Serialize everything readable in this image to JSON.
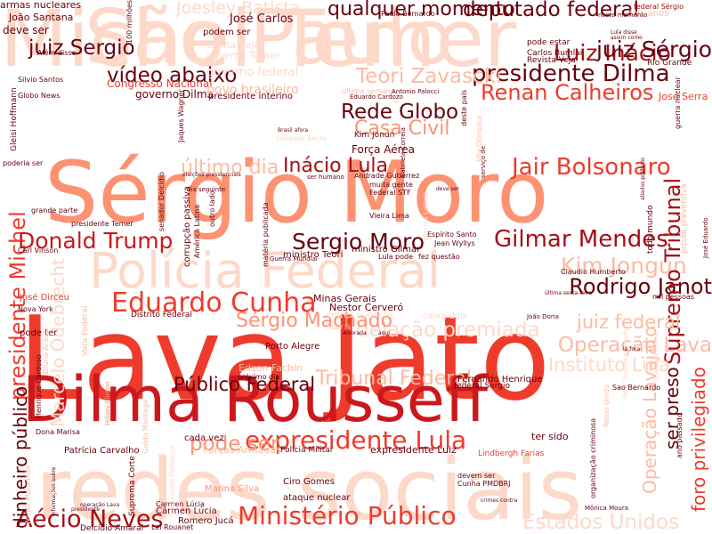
{
  "palette": {
    "very_light": "#fdd9ca",
    "light": "#fcbba1",
    "mid_light": "#fc9272",
    "mid": "#ef3b2c",
    "strong": "#cb181d",
    "dark": "#a50f15",
    "darkest": "#67000d"
  },
  "words": [
    {
      "text": "Michel Temer",
      "tone": "very_light"
    },
    {
      "text": "São Paulo",
      "tone": "very_light"
    },
    {
      "text": "Sérgio Moro",
      "tone": "mid_light"
    },
    {
      "text": "Lava Jato",
      "tone": "mid"
    },
    {
      "text": "Dilma Rousseff",
      "tone": "strong"
    },
    {
      "text": "redes sociais",
      "tone": "very_light"
    },
    {
      "text": "Polícia Federal",
      "tone": "very_light"
    },
    {
      "text": "expresidente Lula",
      "tone": "mid"
    },
    {
      "text": "Eduardo Cunha",
      "tone": "mid"
    },
    {
      "text": "Ministério Público",
      "tone": "mid"
    },
    {
      "text": "Aécio Neves",
      "tone": "dark"
    },
    {
      "text": "presidente Michel",
      "tone": "mid"
    },
    {
      "text": "Gilmar Mendes",
      "tone": "dark"
    },
    {
      "text": "Jair Bolsonaro",
      "tone": "mid"
    },
    {
      "text": "Luiz Inácio",
      "tone": "dark"
    },
    {
      "text": "juiz Sérgio",
      "tone": "darkest"
    },
    {
      "text": "presidente Dilma",
      "tone": "darkest"
    },
    {
      "text": "Renan Calheiros",
      "tone": "mid"
    },
    {
      "text": "Teori Zavascki",
      "tone": "light"
    },
    {
      "text": "deputado federal",
      "tone": "darkest"
    },
    {
      "text": "qualquer momento",
      "tone": "darkest"
    },
    {
      "text": "Inácio Lula",
      "tone": "dark"
    },
    {
      "text": "Donald Trump",
      "tone": "strong"
    },
    {
      "text": "Sergio Moro",
      "tone": "darkest"
    },
    {
      "text": "Kim Jongun",
      "tone": "light"
    },
    {
      "text": "Rodrigo Janot",
      "tone": "darkest"
    },
    {
      "text": "delação premiada",
      "tone": "very_light"
    },
    {
      "text": "Operação Lava",
      "tone": "light"
    },
    {
      "text": "Supremo Tribunal",
      "tone": "dark"
    },
    {
      "text": "Tribunal Federal",
      "tone": "light"
    },
    {
      "text": "pode ser",
      "tone": "mid_light"
    },
    {
      "text": "Estados Unidos",
      "tone": "very_light"
    },
    {
      "text": "Rede Globo",
      "tone": "darkest"
    },
    {
      "text": "Casa Civil",
      "tone": "mid_light"
    },
    {
      "text": "vídeo abaixo",
      "tone": "darkest"
    },
    {
      "text": "juiz Sergio",
      "tone": "darkest"
    },
    {
      "text": "último dia",
      "tone": "light"
    },
    {
      "text": "Sérgio Machado",
      "tone": "mid_light"
    },
    {
      "text": "Instituto Lula",
      "tone": "very_light"
    },
    {
      "text": "juiz federal",
      "tone": "light"
    },
    {
      "text": "Público Federal",
      "tone": "darkest"
    },
    {
      "text": "foro privilegiado",
      "tone": "mid"
    },
    {
      "text": "Operação Lavajato",
      "tone": "light"
    },
    {
      "text": "ser preso",
      "tone": "darkest"
    },
    {
      "text": "dinheiro público",
      "tone": "darkest"
    },
    {
      "text": "Marcelo Odebrecht",
      "tone": "very_light"
    },
    {
      "text": "Joesley Batista",
      "tone": "very_light"
    },
    {
      "text": "José Carlos",
      "tone": "darkest"
    },
    {
      "text": "armas nucleares",
      "tone": "darkest"
    },
    {
      "text": "João Santana",
      "tone": "darkest"
    },
    {
      "text": "deve ser",
      "tone": "darkest"
    },
    {
      "text": "Paulo Bernardo",
      "tone": "darkest"
    },
    {
      "text": "federal Sérgio",
      "tone": "dark"
    },
    {
      "text": "dois anos",
      "tone": "light"
    },
    {
      "text": "podem ser",
      "tone": "darkest"
    },
    {
      "text": "governo Dilma",
      "tone": "darkest"
    },
    {
      "text": "Congresso Nacional",
      "tone": "mid"
    },
    {
      "text": "povo brasileiro",
      "tone": "light"
    },
    {
      "text": "presidente interino",
      "tone": "darkest"
    },
    {
      "text": "governo federal",
      "tone": "very_light"
    },
    {
      "text": "governo Temer",
      "tone": "very_light"
    },
    {
      "text": "revista Veja",
      "tone": "very_light"
    },
    {
      "text": "Força Aérea",
      "tone": "darkest"
    },
    {
      "text": "Kim Jonun",
      "tone": "darkest"
    },
    {
      "text": "Carlos Bumlai",
      "tone": "darkest"
    },
    {
      "text": "Revista Veja",
      "tone": "darkest"
    },
    {
      "text": "pode estar",
      "tone": "darkest"
    },
    {
      "text": "Rio Grande",
      "tone": "darkest"
    },
    {
      "text": "José Serra",
      "tone": "mid"
    },
    {
      "text": "guerra nuclear",
      "tone": "darkest"
    },
    {
      "text": "Minas Gerais",
      "tone": "darkest"
    },
    {
      "text": "Nestor Cerveró",
      "tone": "darkest"
    },
    {
      "text": "cofres públicos",
      "tone": "very_light"
    },
    {
      "text": "caixa dois",
      "tone": "very_light"
    },
    {
      "text": "Distrito Federal",
      "tone": "darkest"
    },
    {
      "text": "Porto Alegre",
      "tone": "darkest"
    },
    {
      "text": "Edson Fachin",
      "tone": "light"
    },
    {
      "text": "Fernando Henrique",
      "tone": "darkest"
    },
    {
      "text": "federal Sergio",
      "tone": "darkest"
    },
    {
      "text": "cada vez",
      "tone": "darkest"
    },
    {
      "text": "Polícia Militar",
      "tone": "darkest"
    },
    {
      "text": "expresidente Luiz",
      "tone": "darkest"
    },
    {
      "text": "Lindbergh Farias",
      "tone": "mid"
    },
    {
      "text": "Patrícia Carvalho",
      "tone": "darkest"
    },
    {
      "text": "Forças Armadas",
      "tone": "light"
    },
    {
      "text": "Marina Silva",
      "tone": "mid_light"
    },
    {
      "text": "Ciro Gomes",
      "tone": "darkest"
    },
    {
      "text": "ataque nuclear",
      "tone": "darkest"
    },
    {
      "text": "Cunha PMDBRJ",
      "tone": "darkest"
    },
    {
      "text": "devem ser",
      "tone": "darkest"
    },
    {
      "text": "Carmen Lúcia",
      "tone": "darkest"
    },
    {
      "text": "Cármen Lúcia",
      "tone": "darkest"
    },
    {
      "text": "Romero Jucá",
      "tone": "darkest"
    },
    {
      "text": "Delcídio Amaral",
      "tone": "darkest"
    },
    {
      "text": "Lei Rouanet",
      "tone": "darkest"
    },
    {
      "text": "Mônica Moura",
      "tone": "darkest"
    },
    {
      "text": "ter sido",
      "tone": "darkest"
    },
    {
      "text": "organização criminosa",
      "tone": "darkest"
    },
    {
      "text": "ministro Teori",
      "tone": "darkest"
    },
    {
      "text": "ministro Gilmar",
      "tone": "darkest"
    },
    {
      "text": "Lula pode",
      "tone": "darkest"
    },
    {
      "text": "fez questão",
      "tone": "darkest"
    },
    {
      "text": "Jean Wyllys",
      "tone": "darkest"
    },
    {
      "text": "Espírito Santo",
      "tone": "darkest"
    },
    {
      "text": "Carl Vinson",
      "tone": "darkest"
    },
    {
      "text": "José Dirceu",
      "tone": "mid"
    },
    {
      "text": "Nova York",
      "tone": "darkest"
    },
    {
      "text": "grande parte",
      "tone": "darkest"
    },
    {
      "text": "poderia ser",
      "tone": "darkest"
    },
    {
      "text": "Globo News",
      "tone": "darkest"
    },
    {
      "text": "Silvio Santos",
      "tone": "darkest"
    },
    {
      "text": "Gleisi Hoffmann",
      "tone": "darkest"
    },
    {
      "text": "Além disso",
      "tone": "darkest"
    },
    {
      "text": "Vieira Lima",
      "tone": "darkest"
    },
    {
      "text": "Federal STF",
      "tone": "darkest"
    },
    {
      "text": "Andrade Gutierrez",
      "tone": "darkest"
    },
    {
      "text": "muita gente",
      "tone": "darkest"
    },
    {
      "text": "Jaques Wagner",
      "tone": "darkest"
    },
    {
      "text": "Eduardo Cardozo",
      "tone": "darkest"
    },
    {
      "text": "última semana",
      "tone": "light"
    },
    {
      "text": "Vila Olímpica",
      "tone": "light"
    },
    {
      "text": "senador Aécio",
      "tone": "very_light"
    },
    {
      "text": "todo mundo",
      "tone": "darkest"
    },
    {
      "text": "prisão preventiva",
      "tone": "light"
    },
    {
      "text": "Claudio Humberto",
      "tone": "darkest"
    },
    {
      "text": "mil pessoas",
      "tone": "darkest"
    },
    {
      "text": "Guido Mantega",
      "tone": "light"
    },
    {
      "text": "Sepúlveda Pertence",
      "tone": "very_light"
    },
    {
      "text": "próximo dia",
      "tone": "darkest"
    },
    {
      "text": "Rede Sustentabilidade",
      "tone": "very_light"
    },
    {
      "text": "Operação Carne",
      "tone": "very_light"
    },
    {
      "text": "Sao Bernardo",
      "tone": "darkest"
    },
    {
      "text": "ano passado",
      "tone": "darkest"
    },
    {
      "text": "Reino Unido",
      "tone": "light"
    },
    {
      "text": "Henrique Cardoso",
      "tone": "darkest"
    },
    {
      "text": "Hillary Clinton",
      "tone": "mid_light"
    },
    {
      "text": "Suprema Corte",
      "tone": "darkest"
    },
    {
      "text": "Dona Marisa",
      "tone": "darkest"
    },
    {
      "text": "corrupção passiva",
      "tone": "darkest"
    },
    {
      "text": "senador Delcídio",
      "tone": "darkest"
    },
    {
      "text": "matéria publicada",
      "tone": "darkest"
    },
    {
      "text": "América Latina",
      "tone": "darkest"
    },
    {
      "text": "outro lado",
      "tone": "darkest"
    },
    {
      "text": "100 milhões",
      "tone": "darkest"
    },
    {
      "text": "pode ter",
      "tone": "darkest"
    },
    {
      "text": "Vara Federal",
      "tone": "light"
    },
    {
      "text": "Marisa Letícia",
      "tone": "very_light"
    },
    {
      "text": "Waldir Maranhão",
      "tone": "light"
    },
    {
      "text": "informações sobre",
      "tone": "darkest"
    },
    {
      "text": "Bruno Araújo",
      "tone": "light"
    },
    {
      "text": "Gabriela Correia",
      "tone": "darkest"
    },
    {
      "text": "Antonio Palocci",
      "tone": "darkest"
    },
    {
      "text": "serviço de",
      "tone": "darkest"
    },
    {
      "text": "neste momento",
      "tone": "darkest"
    },
    {
      "text": "assim como",
      "tone": "darkest"
    },
    {
      "text": "Lula disse",
      "tone": "darkest"
    },
    {
      "text": "Brasil afora",
      "tone": "darkest"
    },
    {
      "text": "deste país",
      "tone": "darkest"
    },
    {
      "text": "ser humano",
      "tone": "darkest"
    },
    {
      "text": "dia seguinte",
      "tone": "darkest"
    },
    {
      "text": "eleições presidenciais",
      "tone": "darkest"
    },
    {
      "text": "crimes contra",
      "tone": "darkest"
    },
    {
      "text": "José Eduardo",
      "tone": "darkest"
    },
    {
      "text": "lula lá",
      "tone": "light"
    },
    {
      "text": "Alvorada",
      "tone": "darkest"
    },
    {
      "text": "aqui",
      "tone": "darkest"
    },
    {
      "text": "João Doria",
      "tone": "darkest"
    },
    {
      "text": "última sexta-feira",
      "tone": "darkest"
    },
    {
      "text": "aliados políticos",
      "tone": "darkest"
    },
    {
      "text": "lá fora",
      "tone": "darkest"
    },
    {
      "text": "Guerra Mundial",
      "tone": "darkest"
    },
    {
      "text": "presidente Temer",
      "tone": "darkest"
    },
    {
      "text": "deve ser",
      "tone": "darkest"
    },
    {
      "text": "presidente",
      "tone": "darkest"
    },
    {
      "text": "operação Lava",
      "tone": "darkest"
    }
  ]
}
